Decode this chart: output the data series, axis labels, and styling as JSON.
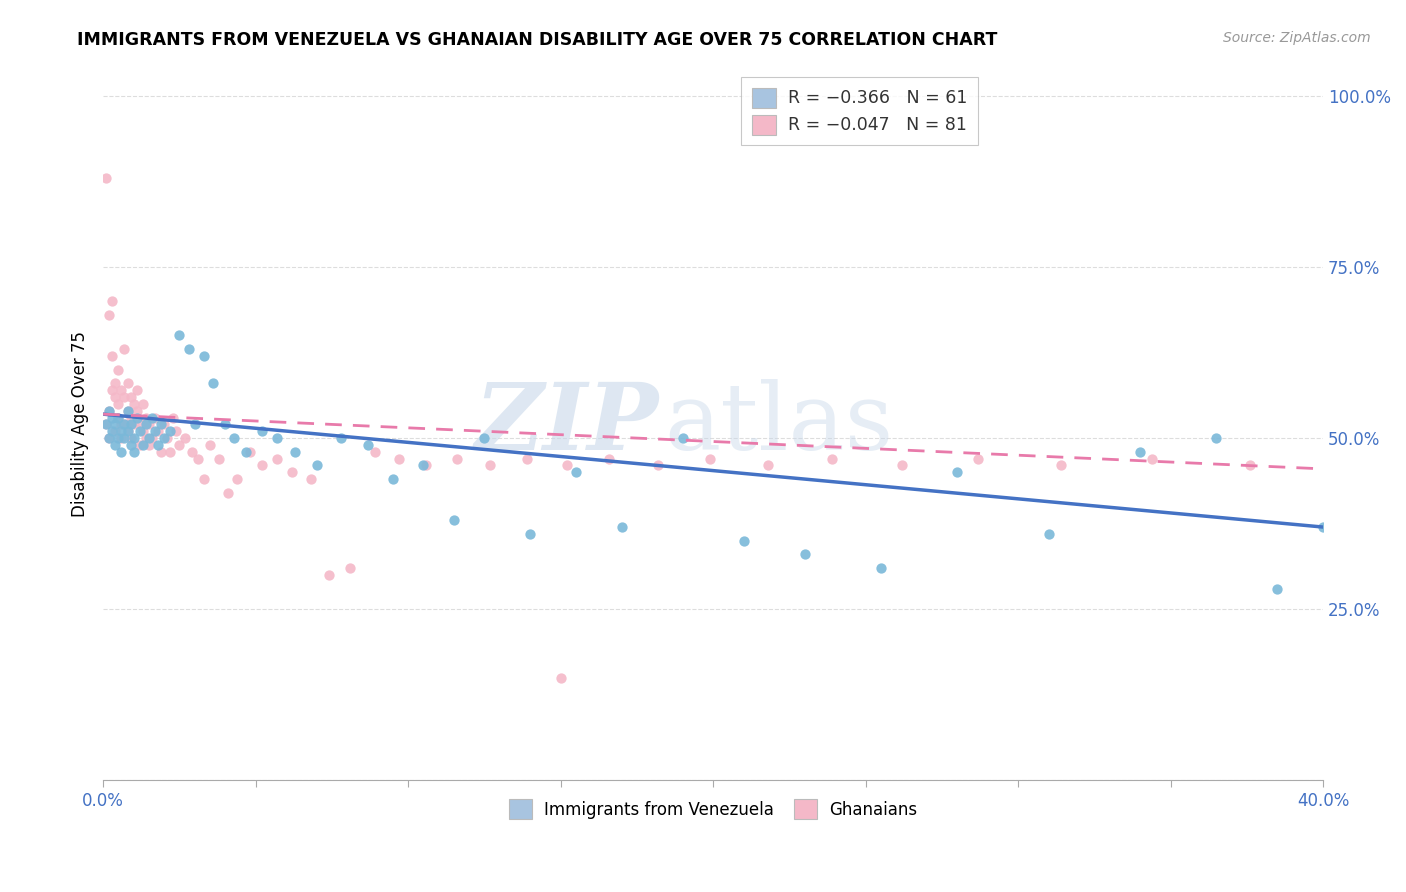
{
  "title": "IMMIGRANTS FROM VENEZUELA VS GHANAIAN DISABILITY AGE OVER 75 CORRELATION CHART",
  "source": "Source: ZipAtlas.com",
  "ylabel": "Disability Age Over 75",
  "legend_color1": "#a8c4e0",
  "legend_color2": "#f4b8c8",
  "dot_color_blue": "#7ab8d9",
  "dot_color_pink": "#f4b8c8",
  "line_color_blue": "#4472C4",
  "line_color_pink": "#e87aaa",
  "watermark_zip": "ZIP",
  "watermark_atlas": "atlas",
  "background_color": "#ffffff",
  "grid_color": "#dddddd",
  "blue_x": [
    0.001,
    0.002,
    0.002,
    0.003,
    0.003,
    0.004,
    0.004,
    0.005,
    0.005,
    0.006,
    0.006,
    0.007,
    0.007,
    0.008,
    0.008,
    0.009,
    0.009,
    0.01,
    0.01,
    0.011,
    0.012,
    0.013,
    0.014,
    0.015,
    0.016,
    0.017,
    0.018,
    0.019,
    0.02,
    0.022,
    0.025,
    0.028,
    0.03,
    0.033,
    0.036,
    0.04,
    0.043,
    0.047,
    0.052,
    0.057,
    0.063,
    0.07,
    0.078,
    0.087,
    0.095,
    0.105,
    0.115,
    0.125,
    0.14,
    0.155,
    0.17,
    0.19,
    0.21,
    0.23,
    0.255,
    0.28,
    0.31,
    0.34,
    0.365,
    0.385,
    0.4
  ],
  "blue_y": [
    0.52,
    0.5,
    0.54,
    0.51,
    0.53,
    0.49,
    0.52,
    0.5,
    0.53,
    0.51,
    0.48,
    0.52,
    0.5,
    0.54,
    0.51,
    0.49,
    0.52,
    0.5,
    0.48,
    0.53,
    0.51,
    0.49,
    0.52,
    0.5,
    0.53,
    0.51,
    0.49,
    0.52,
    0.5,
    0.51,
    0.65,
    0.63,
    0.52,
    0.62,
    0.58,
    0.52,
    0.5,
    0.48,
    0.51,
    0.5,
    0.48,
    0.46,
    0.5,
    0.49,
    0.44,
    0.46,
    0.38,
    0.5,
    0.36,
    0.45,
    0.37,
    0.5,
    0.35,
    0.33,
    0.31,
    0.45,
    0.36,
    0.48,
    0.5,
    0.28,
    0.37
  ],
  "pink_x": [
    0.001,
    0.001,
    0.002,
    0.002,
    0.002,
    0.003,
    0.003,
    0.003,
    0.004,
    0.004,
    0.004,
    0.005,
    0.005,
    0.005,
    0.006,
    0.006,
    0.006,
    0.007,
    0.007,
    0.007,
    0.008,
    0.008,
    0.008,
    0.009,
    0.009,
    0.009,
    0.01,
    0.01,
    0.011,
    0.011,
    0.012,
    0.012,
    0.013,
    0.013,
    0.014,
    0.014,
    0.015,
    0.015,
    0.016,
    0.017,
    0.018,
    0.019,
    0.02,
    0.021,
    0.022,
    0.023,
    0.024,
    0.025,
    0.027,
    0.029,
    0.031,
    0.033,
    0.035,
    0.038,
    0.041,
    0.044,
    0.048,
    0.052,
    0.057,
    0.062,
    0.068,
    0.074,
    0.081,
    0.089,
    0.097,
    0.106,
    0.116,
    0.127,
    0.139,
    0.152,
    0.166,
    0.182,
    0.199,
    0.218,
    0.239,
    0.262,
    0.287,
    0.314,
    0.344,
    0.376,
    0.15
  ],
  "pink_y": [
    0.88,
    0.52,
    0.68,
    0.54,
    0.5,
    0.7,
    0.62,
    0.57,
    0.58,
    0.56,
    0.51,
    0.55,
    0.6,
    0.53,
    0.57,
    0.52,
    0.5,
    0.63,
    0.56,
    0.52,
    0.58,
    0.54,
    0.51,
    0.56,
    0.53,
    0.5,
    0.55,
    0.52,
    0.57,
    0.54,
    0.52,
    0.49,
    0.55,
    0.51,
    0.53,
    0.5,
    0.52,
    0.49,
    0.5,
    0.53,
    0.51,
    0.48,
    0.52,
    0.5,
    0.48,
    0.53,
    0.51,
    0.49,
    0.5,
    0.48,
    0.47,
    0.44,
    0.49,
    0.47,
    0.42,
    0.44,
    0.48,
    0.46,
    0.47,
    0.45,
    0.44,
    0.3,
    0.31,
    0.48,
    0.47,
    0.46,
    0.47,
    0.46,
    0.47,
    0.46,
    0.47,
    0.46,
    0.47,
    0.46,
    0.47,
    0.46,
    0.47,
    0.46,
    0.47,
    0.46,
    0.15
  ]
}
